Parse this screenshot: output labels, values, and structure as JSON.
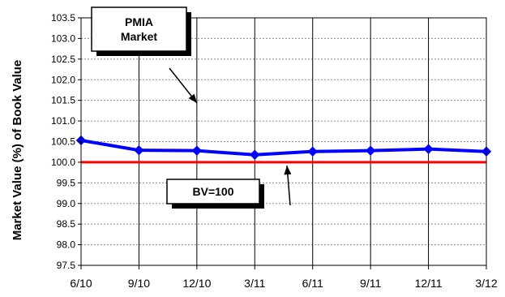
{
  "chart_data": {
    "type": "line",
    "title": "",
    "xlabel": "",
    "ylabel": "Market Value (%) of Book Value",
    "categories": [
      "6/10",
      "9/10",
      "12/10",
      "3/11",
      "6/11",
      "9/11",
      "12/11",
      "3/12"
    ],
    "ylim": [
      97.5,
      103.5
    ],
    "yticks": [
      "97.5",
      "98.0",
      "98.5",
      "99.0",
      "99.5",
      "100.0",
      "100.5",
      "101.0",
      "101.5",
      "102.0",
      "102.5",
      "103.0",
      "103.5"
    ],
    "grid": true,
    "series": [
      {
        "name": "PMIA Market",
        "color": "#0000ff",
        "marker": "diamond",
        "values": [
          100.53,
          100.29,
          100.28,
          100.18,
          100.26,
          100.28,
          100.32,
          100.26
        ]
      },
      {
        "name": "BV=100",
        "color": "#ff0000",
        "values": [
          100.0,
          100.0,
          100.0,
          100.0,
          100.0,
          100.0,
          100.0,
          100.0
        ]
      }
    ],
    "annotations": [
      {
        "text_lines": [
          "PMIA",
          "Market"
        ],
        "points_to": "PMIA Market"
      },
      {
        "text_lines": [
          "BV=100"
        ],
        "points_to": "BV=100"
      }
    ]
  }
}
